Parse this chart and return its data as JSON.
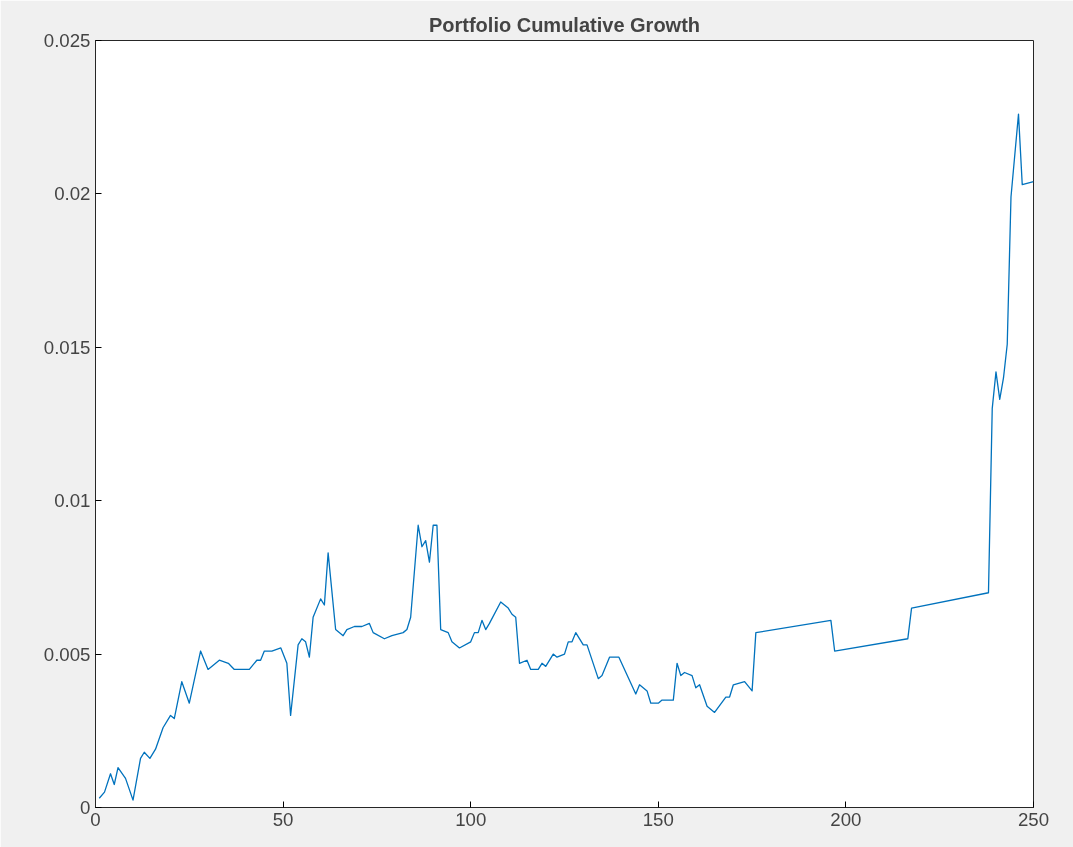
{
  "chart_data": {
    "type": "line",
    "title": "Portfolio Cumulative Growth",
    "xlim": [
      0,
      250
    ],
    "xticks": [
      0,
      50,
      100,
      150,
      200,
      250
    ],
    "ylim": [
      0,
      0.025
    ],
    "yticks": [
      0,
      0.005,
      0.01,
      0.015,
      0.02,
      0.025
    ],
    "grid": false,
    "line_style": "solid",
    "series": [
      {
        "color": "#0072bd",
        "x": [
          1,
          2.4,
          4,
          5,
          6,
          8,
          10,
          12,
          13,
          14.5,
          16,
          18,
          20,
          21,
          23,
          25,
          28,
          30,
          33,
          35.4,
          37,
          41,
          43,
          44,
          45,
          47,
          49.4,
          51,
          52,
          54,
          55,
          56,
          57,
          58,
          60,
          61,
          62,
          64,
          66,
          67,
          69,
          71,
          73,
          74,
          77,
          79,
          82,
          83,
          84,
          86,
          87,
          88,
          89,
          90,
          91,
          92,
          94,
          95,
          97,
          100,
          101,
          102,
          103,
          104,
          105,
          108,
          110,
          111,
          112,
          113,
          115,
          116,
          118,
          119,
          120,
          122,
          123,
          125,
          126,
          127,
          128,
          130,
          131,
          134,
          135,
          137,
          139.5,
          144,
          145,
          147,
          148,
          150,
          151,
          154,
          155,
          156,
          157,
          159,
          160,
          161,
          163,
          165,
          168,
          169,
          170,
          173,
          175,
          176,
          196,
          197,
          216.5,
          217.5,
          238,
          239,
          240,
          241,
          242,
          243,
          244,
          246,
          247,
          250
        ],
        "values": [
          0.0003,
          0.0005,
          0.0011,
          0.00075,
          0.0013,
          0.00095,
          0.00024,
          0.0016,
          0.0018,
          0.0016,
          0.0019,
          0.0026,
          0.003,
          0.0029,
          0.0041,
          0.0034,
          0.0051,
          0.0045,
          0.0048,
          0.0047,
          0.0045,
          0.0045,
          0.0048,
          0.0048,
          0.0051,
          0.0051,
          0.0052,
          0.0047,
          0.003,
          0.0053,
          0.0055,
          0.0054,
          0.0049,
          0.0062,
          0.0068,
          0.0066,
          0.0083,
          0.0058,
          0.0056,
          0.0058,
          0.0059,
          0.0059,
          0.006,
          0.0057,
          0.0055,
          0.0056,
          0.0057,
          0.0058,
          0.0062,
          0.0092,
          0.0085,
          0.0087,
          0.008,
          0.0092,
          0.0092,
          0.0058,
          0.0057,
          0.0054,
          0.0052,
          0.0054,
          0.0057,
          0.0057,
          0.0061,
          0.0058,
          0.006,
          0.0067,
          0.0065,
          0.0063,
          0.0062,
          0.0047,
          0.0048,
          0.0045,
          0.0045,
          0.0047,
          0.0046,
          0.005,
          0.0049,
          0.005,
          0.0054,
          0.0054,
          0.0057,
          0.0053,
          0.0053,
          0.0042,
          0.0043,
          0.0049,
          0.0049,
          0.0037,
          0.004,
          0.0038,
          0.0034,
          0.0034,
          0.0035,
          0.0035,
          0.0047,
          0.0043,
          0.0044,
          0.0043,
          0.0039,
          0.004,
          0.0033,
          0.0031,
          0.0036,
          0.0036,
          0.004,
          0.0041,
          0.0038,
          0.0057,
          0.0061,
          0.0051,
          0.0055,
          0.0065,
          0.007,
          0.013,
          0.0142,
          0.0133,
          0.014,
          0.0151,
          0.0199,
          0.0226,
          0.0203,
          0.0204
        ]
      }
    ]
  }
}
